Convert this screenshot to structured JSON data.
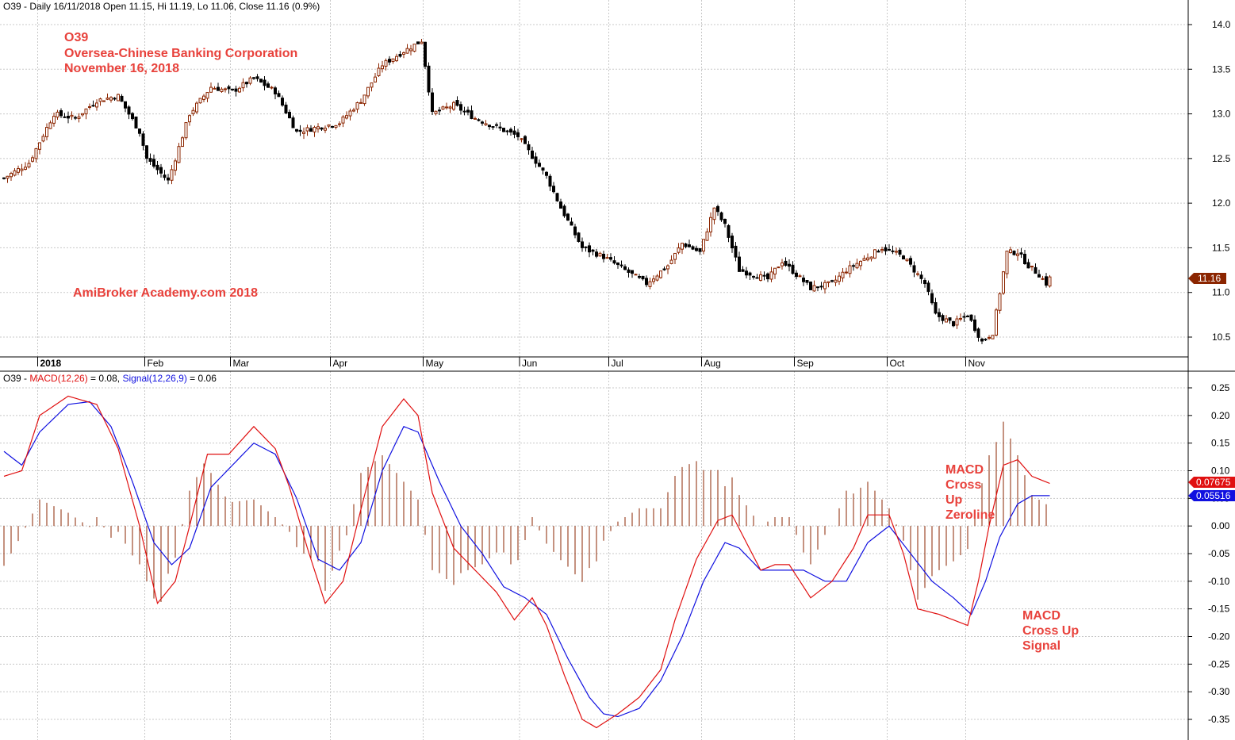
{
  "price_panel": {
    "info": {
      "symbol": "O39",
      "period": "Daily",
      "date": "16/11/2018",
      "open_label": "Open",
      "open": "11.15",
      "high_label": "Hi",
      "high": "11.19",
      "low_label": "Lo",
      "low": "11.06",
      "close_label": "Close",
      "close": "11.16",
      "change": "(0.9%)"
    },
    "annotations": {
      "ticker": "O39",
      "company": "Oversea-Chinese Banking Corporation",
      "date": "November 16, 2018",
      "watermark": "AmiBroker Academy.com 2018"
    },
    "last_price_tag": "11.16"
  },
  "macd_panel": {
    "info": {
      "symbol": "O39",
      "macd_label": "MACD(12,26)",
      "macd_value": "0.08",
      "signal_label": "Signal(12,26,9)",
      "signal_value": "0.06"
    },
    "annotations": {
      "zeroline_cross": [
        "MACD",
        "Cross",
        "Up",
        "Zeroline"
      ],
      "signal_cross": [
        "MACD",
        "Cross Up",
        "Signal"
      ]
    },
    "macd_tag": "0.07675",
    "signal_tag": "0.05516"
  },
  "colors": {
    "up_candle": "#8b2500",
    "down_candle": "#000000",
    "macd_line": "#e01010",
    "signal_line": "#1010e0",
    "histogram": "#8b2500",
    "annotation": "#e8423c",
    "grid": "#c8c8c8"
  },
  "chart_data": [
    {
      "type": "candlestick",
      "title": "O39 - Daily 16/11/2018 Open 11.15, Hi 11.19, Lo 11.06, Close 11.16 (0.9%)",
      "x_axis_labels": [
        "2018",
        "Feb",
        "Mar",
        "Apr",
        "May",
        "Jun",
        "Jul",
        "Aug",
        "Sep",
        "Oct",
        "Nov"
      ],
      "y_ticks": [
        "14.0",
        "13.5",
        "13.0",
        "12.5",
        "12.0",
        "11.5",
        "11.0",
        "10.5"
      ],
      "ylim": [
        10.25,
        14.2
      ],
      "grid": true,
      "close_anchors": [
        [
          0,
          12.28
        ],
        [
          7,
          12.45
        ],
        [
          14,
          13.0
        ],
        [
          20,
          12.95
        ],
        [
          26,
          13.15
        ],
        [
          32,
          13.2
        ],
        [
          38,
          12.8
        ],
        [
          40,
          12.5
        ],
        [
          46,
          12.25
        ],
        [
          52,
          13.0
        ],
        [
          58,
          13.3
        ],
        [
          64,
          13.25
        ],
        [
          70,
          13.4
        ],
        [
          76,
          13.25
        ],
        [
          82,
          12.8
        ],
        [
          88,
          12.85
        ],
        [
          94,
          12.9
        ],
        [
          100,
          13.15
        ],
        [
          106,
          13.55
        ],
        [
          112,
          13.7
        ],
        [
          117,
          13.82
        ],
        [
          120,
          13.0
        ],
        [
          126,
          13.1
        ],
        [
          132,
          12.95
        ],
        [
          138,
          12.85
        ],
        [
          144,
          12.75
        ],
        [
          152,
          12.3
        ],
        [
          156,
          11.95
        ],
        [
          162,
          11.5
        ],
        [
          168,
          11.4
        ],
        [
          174,
          11.25
        ],
        [
          180,
          11.1
        ],
        [
          186,
          11.3
        ],
        [
          190,
          11.55
        ],
        [
          195,
          11.45
        ],
        [
          199,
          11.95
        ],
        [
          202,
          11.75
        ],
        [
          206,
          11.25
        ],
        [
          214,
          11.15
        ],
        [
          218,
          11.35
        ],
        [
          226,
          11.05
        ],
        [
          232,
          11.1
        ],
        [
          236,
          11.25
        ],
        [
          240,
          11.35
        ],
        [
          246,
          11.5
        ],
        [
          252,
          11.4
        ],
        [
          258,
          11.1
        ],
        [
          261,
          10.75
        ],
        [
          266,
          10.65
        ],
        [
          270,
          10.75
        ],
        [
          274,
          10.45
        ],
        [
          277,
          10.55
        ],
        [
          279,
          11.0
        ],
        [
          281,
          11.45
        ],
        [
          284,
          11.45
        ],
        [
          287,
          11.3
        ],
        [
          290,
          11.2
        ],
        [
          292,
          11.1
        ],
        [
          293,
          11.16
        ]
      ]
    },
    {
      "type": "line",
      "title": "O39 - MACD(12,26) = 0.08, Signal(12,26,9) = 0.06",
      "y_ticks": [
        "0.25",
        "0.20",
        "0.15",
        "0.10",
        "0.05",
        "0.00",
        "-0.05",
        "-0.10",
        "-0.15",
        "-0.20",
        "-0.25",
        "-0.30",
        "-0.35"
      ],
      "ylim": [
        -0.38,
        0.27
      ],
      "grid": true,
      "series": [
        {
          "name": "MACD(12,26)",
          "points": [
            [
              0,
              0.09
            ],
            [
              5,
              0.1
            ],
            [
              10,
              0.2
            ],
            [
              18,
              0.235
            ],
            [
              26,
              0.22
            ],
            [
              32,
              0.14
            ],
            [
              38,
              0.0
            ],
            [
              43,
              -0.14
            ],
            [
              48,
              -0.1
            ],
            [
              52,
              0.0
            ],
            [
              57,
              0.13
            ],
            [
              63,
              0.13
            ],
            [
              70,
              0.18
            ],
            [
              76,
              0.14
            ],
            [
              80,
              0.07
            ],
            [
              85,
              -0.04
            ],
            [
              90,
              -0.14
            ],
            [
              95,
              -0.1
            ],
            [
              100,
              0.03
            ],
            [
              106,
              0.18
            ],
            [
              112,
              0.23
            ],
            [
              116,
              0.2
            ],
            [
              120,
              0.06
            ],
            [
              126,
              -0.04
            ],
            [
              132,
              -0.08
            ],
            [
              138,
              -0.12
            ],
            [
              143,
              -0.17
            ],
            [
              148,
              -0.13
            ],
            [
              152,
              -0.18
            ],
            [
              157,
              -0.27
            ],
            [
              162,
              -0.35
            ],
            [
              166,
              -0.365
            ],
            [
              172,
              -0.34
            ],
            [
              178,
              -0.31
            ],
            [
              184,
              -0.26
            ],
            [
              188,
              -0.17
            ],
            [
              194,
              -0.06
            ],
            [
              200,
              0.01
            ],
            [
              204,
              0.02
            ],
            [
              208,
              -0.03
            ],
            [
              212,
              -0.08
            ],
            [
              216,
              -0.07
            ],
            [
              220,
              -0.07
            ],
            [
              226,
              -0.13
            ],
            [
              232,
              -0.1
            ],
            [
              238,
              -0.04
            ],
            [
              242,
              0.02
            ],
            [
              248,
              0.02
            ],
            [
              252,
              -0.05
            ],
            [
              256,
              -0.15
            ],
            [
              262,
              -0.16
            ],
            [
              266,
              -0.17
            ],
            [
              270,
              -0.18
            ],
            [
              273,
              -0.1
            ],
            [
              276,
              0.0
            ],
            [
              280,
              0.11
            ],
            [
              284,
              0.12
            ],
            [
              288,
              0.09
            ],
            [
              293,
              0.077
            ]
          ]
        },
        {
          "name": "Signal(12,26,9)",
          "points": [
            [
              0,
              0.135
            ],
            [
              5,
              0.11
            ],
            [
              10,
              0.17
            ],
            [
              18,
              0.22
            ],
            [
              24,
              0.225
            ],
            [
              30,
              0.18
            ],
            [
              36,
              0.08
            ],
            [
              42,
              -0.03
            ],
            [
              47,
              -0.07
            ],
            [
              52,
              -0.04
            ],
            [
              58,
              0.07
            ],
            [
              64,
              0.11
            ],
            [
              70,
              0.15
            ],
            [
              76,
              0.13
            ],
            [
              82,
              0.05
            ],
            [
              88,
              -0.06
            ],
            [
              94,
              -0.08
            ],
            [
              100,
              -0.03
            ],
            [
              106,
              0.1
            ],
            [
              112,
              0.18
            ],
            [
              116,
              0.17
            ],
            [
              122,
              0.08
            ],
            [
              128,
              0.0
            ],
            [
              134,
              -0.05
            ],
            [
              140,
              -0.11
            ],
            [
              146,
              -0.13
            ],
            [
              152,
              -0.16
            ],
            [
              158,
              -0.24
            ],
            [
              164,
              -0.31
            ],
            [
              168,
              -0.34
            ],
            [
              172,
              -0.345
            ],
            [
              178,
              -0.33
            ],
            [
              184,
              -0.28
            ],
            [
              190,
              -0.2
            ],
            [
              196,
              -0.1
            ],
            [
              202,
              -0.03
            ],
            [
              206,
              -0.04
            ],
            [
              212,
              -0.08
            ],
            [
              218,
              -0.08
            ],
            [
              224,
              -0.08
            ],
            [
              230,
              -0.1
            ],
            [
              236,
              -0.1
            ],
            [
              242,
              -0.03
            ],
            [
              248,
              0.0
            ],
            [
              254,
              -0.05
            ],
            [
              260,
              -0.1
            ],
            [
              266,
              -0.13
            ],
            [
              271,
              -0.16
            ],
            [
              275,
              -0.1
            ],
            [
              279,
              -0.02
            ],
            [
              284,
              0.04
            ],
            [
              288,
              0.055
            ],
            [
              293,
              0.055
            ]
          ]
        }
      ]
    }
  ]
}
